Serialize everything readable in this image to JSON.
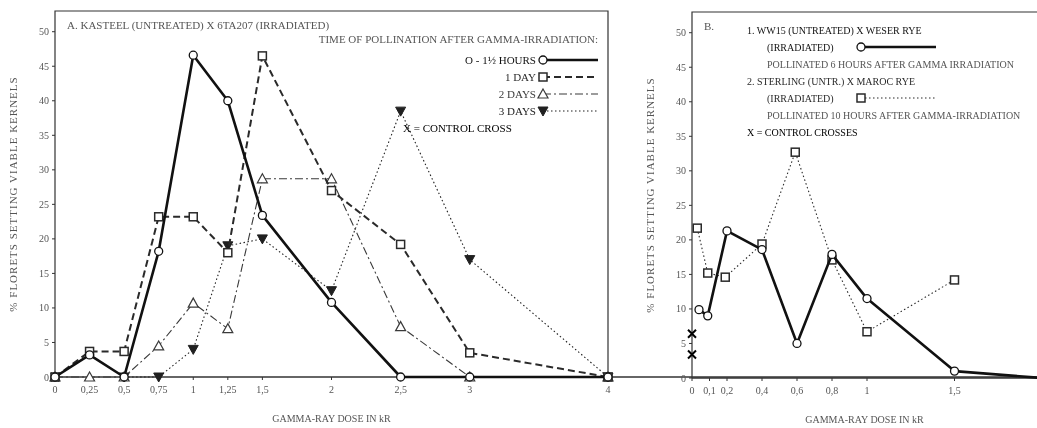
{
  "chart_data": [
    {
      "type": "line",
      "title": "A.  KASTEEL (UNTREATED) X 6TA207 (IRRADIATED)",
      "legend_title": "TIME OF POLLINATION AFTER GAMMA-IRRADIATION:",
      "xlabel": "GAMMA-RAY DOSE  IN kR",
      "ylabel": "% FLORETS SETTING VIABLE KERNELS",
      "legend": "top right",
      "xlim": [
        0,
        4
      ],
      "ylim": [
        0,
        53
      ],
      "xticks": [
        0,
        {
          "value": 0.25,
          "label": "0,25"
        },
        {
          "value": 0.5,
          "label": "0,5"
        },
        {
          "value": 0.75,
          "label": "0,75"
        },
        1,
        {
          "value": 1.25,
          "label": "1,25"
        },
        {
          "value": 1.5,
          "label": "1,5"
        },
        2,
        {
          "value": 2.5,
          "label": "2,5"
        },
        3,
        4
      ],
      "yticks": [
        0,
        5,
        10,
        15,
        20,
        25,
        30,
        35,
        40,
        45,
        50
      ],
      "series": [
        {
          "name": "O - 1½ HOURS",
          "color": "#111111",
          "line_style": "solid",
          "marker": "circle",
          "x": [
            0,
            0.25,
            0.5,
            0.75,
            1,
            1.25,
            1.5,
            2,
            2.5,
            3,
            4
          ],
          "values": [
            0,
            3.2,
            0,
            18.2,
            46.6,
            40,
            23.4,
            10.8,
            0,
            0,
            0
          ]
        },
        {
          "name": "1 DAY",
          "color": "#2a2a2a",
          "line_style": "dashed",
          "marker": "square",
          "x": [
            0,
            0.25,
            0.5,
            0.75,
            1,
            1.25,
            1.5,
            2,
            2.5,
            3,
            4
          ],
          "values": [
            0,
            3.7,
            3.7,
            23.2,
            23.2,
            18,
            46.5,
            27,
            19.2,
            3.5,
            0
          ]
        },
        {
          "name": "2 DAYS",
          "color": "#3a3a3a",
          "line_style": "dashdot",
          "marker": "triangle",
          "x": [
            0,
            0.25,
            0.5,
            0.75,
            1,
            1.25,
            1.5,
            2,
            2.5,
            3,
            4
          ],
          "values": [
            0,
            0,
            0,
            4.5,
            10.7,
            7,
            28.7,
            28.7,
            7.3,
            0,
            0
          ]
        },
        {
          "name": "3 DAYS",
          "color": "#202020",
          "line_style": "dotted",
          "marker": "triangle-down",
          "x": [
            0.5,
            0.75,
            1,
            1.25,
            1.5,
            2,
            2.5,
            3,
            4
          ],
          "values": [
            0,
            0,
            4,
            19,
            20,
            12.5,
            38.5,
            17,
            0
          ]
        },
        {
          "name": "X = CONTROL CROSS",
          "type": "scatter",
          "color": "#000000",
          "marker": "cross",
          "x": [
            0
          ],
          "values": [
            0
          ]
        }
      ]
    },
    {
      "type": "line",
      "title": "B.",
      "annotations": [
        "POLLINATED 6 HOURS AFTER GAMMA IRRADIATION",
        "POLLINATED 10 HOURS AFTER GAMMA-IRRADIATION"
      ],
      "xlabel": "GAMMA-RAY  DOSE  IN kR",
      "ylabel": "% FLORETS SETTING VIABLE KERNELS",
      "legend": "top",
      "xlim": [
        0,
        2
      ],
      "ylim": [
        0,
        53
      ],
      "xticks": [
        0,
        {
          "value": 0.1,
          "label": "0,1"
        },
        {
          "value": 0.2,
          "label": "0,2"
        },
        {
          "value": 0.4,
          "label": "0,4"
        },
        {
          "value": 0.6,
          "label": "0,6"
        },
        {
          "value": 0.8,
          "label": "0,8"
        },
        1,
        {
          "value": 1.5,
          "label": "1,5"
        }
      ],
      "yticks": [
        0,
        5,
        10,
        15,
        20,
        25,
        30,
        35,
        40,
        45,
        50
      ],
      "series": [
        {
          "name": "1.  WW15 (UNTREATED) X WESER RYE (IRRADIATED)",
          "color": "#111111",
          "line_style": "solid",
          "marker": "circle",
          "x": [
            0.04,
            0.09,
            0.2,
            0.4,
            0.6,
            0.8,
            1,
            1.5,
            2
          ],
          "values": [
            9.9,
            9,
            21.3,
            18.6,
            5,
            17.9,
            11.5,
            1,
            0
          ]
        },
        {
          "name": "2.  STERLING (UNTR.) X MAROC RYE (IRRADIATED)",
          "color": "#2a2a2a",
          "line_style": "dotted",
          "marker": "square",
          "x": [
            0.03,
            0.09,
            0.19,
            0.4,
            0.59,
            0.8,
            1,
            1.5
          ],
          "values": [
            21.7,
            15.2,
            14.6,
            19.4,
            32.7,
            17.1,
            6.7,
            14.2
          ]
        },
        {
          "name": "X = CONTROL CROSSES",
          "type": "scatter",
          "color": "#000000",
          "marker": "cross",
          "x": [
            0,
            0
          ],
          "values": [
            6.4,
            3.4
          ]
        }
      ]
    }
  ]
}
